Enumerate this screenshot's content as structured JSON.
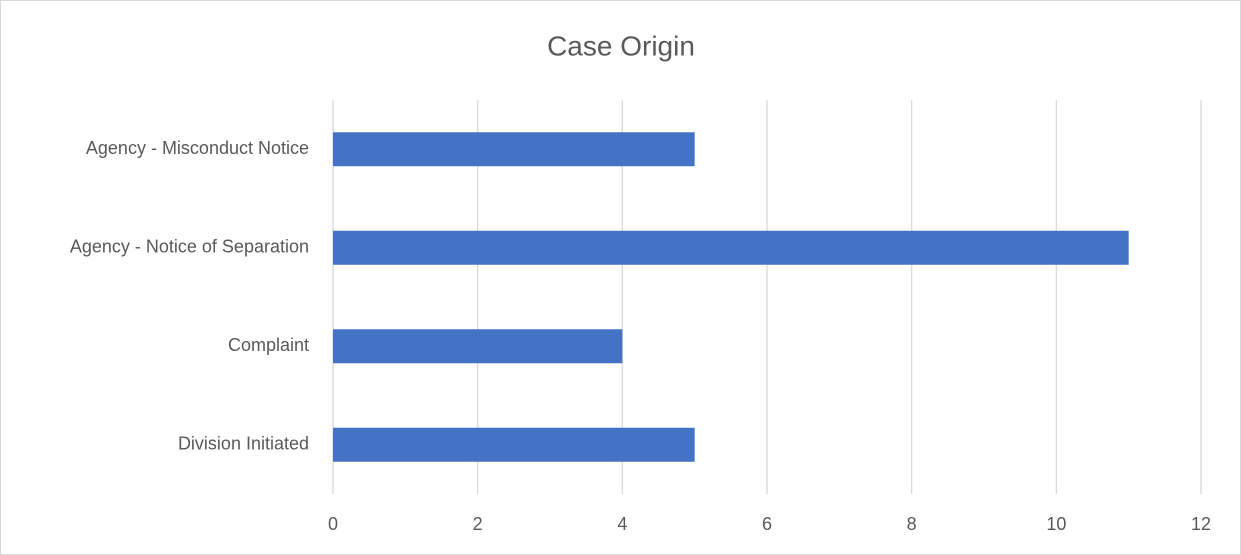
{
  "chart_data": {
    "type": "bar",
    "orientation": "horizontal",
    "title": "Case Origin",
    "categories": [
      "Agency - Misconduct Notice",
      "Agency - Notice of Separation",
      "Complaint",
      "Division Initiated"
    ],
    "values": [
      5,
      11,
      4,
      5
    ],
    "color": "#4472c4",
    "xlim": [
      0,
      12
    ],
    "xticks": [
      0,
      2,
      4,
      6,
      8,
      10,
      12
    ],
    "grid": true
  }
}
